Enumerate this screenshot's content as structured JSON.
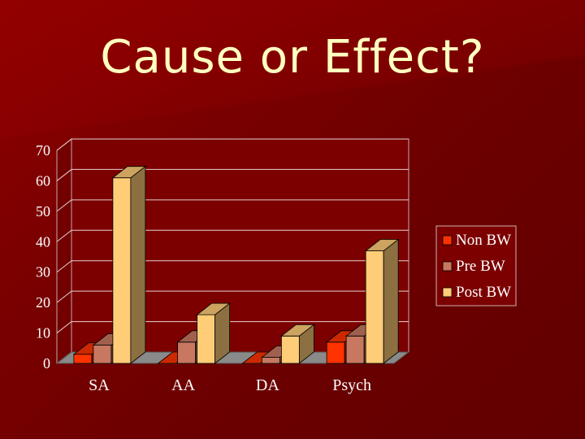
{
  "slide": {
    "title": "Cause or Effect?"
  },
  "chart_data": {
    "type": "bar",
    "title": "",
    "xlabel": "",
    "ylabel": "",
    "ylim": [
      0,
      70
    ],
    "yticks": [
      0,
      10,
      20,
      30,
      40,
      50,
      60,
      70
    ],
    "grid": true,
    "legend_position": "right",
    "categories": [
      "SA",
      "AA",
      "DA",
      "Psych"
    ],
    "series": [
      {
        "name": "Non BW",
        "color": "#ff3300",
        "values": [
          3,
          0,
          0,
          7
        ]
      },
      {
        "name": "Pre BW",
        "color": "#c87861",
        "values": [
          6,
          7,
          2,
          9
        ]
      },
      {
        "name": "Post BW",
        "color": "#ffcc77",
        "values": [
          61,
          16,
          9,
          37
        ]
      }
    ]
  }
}
